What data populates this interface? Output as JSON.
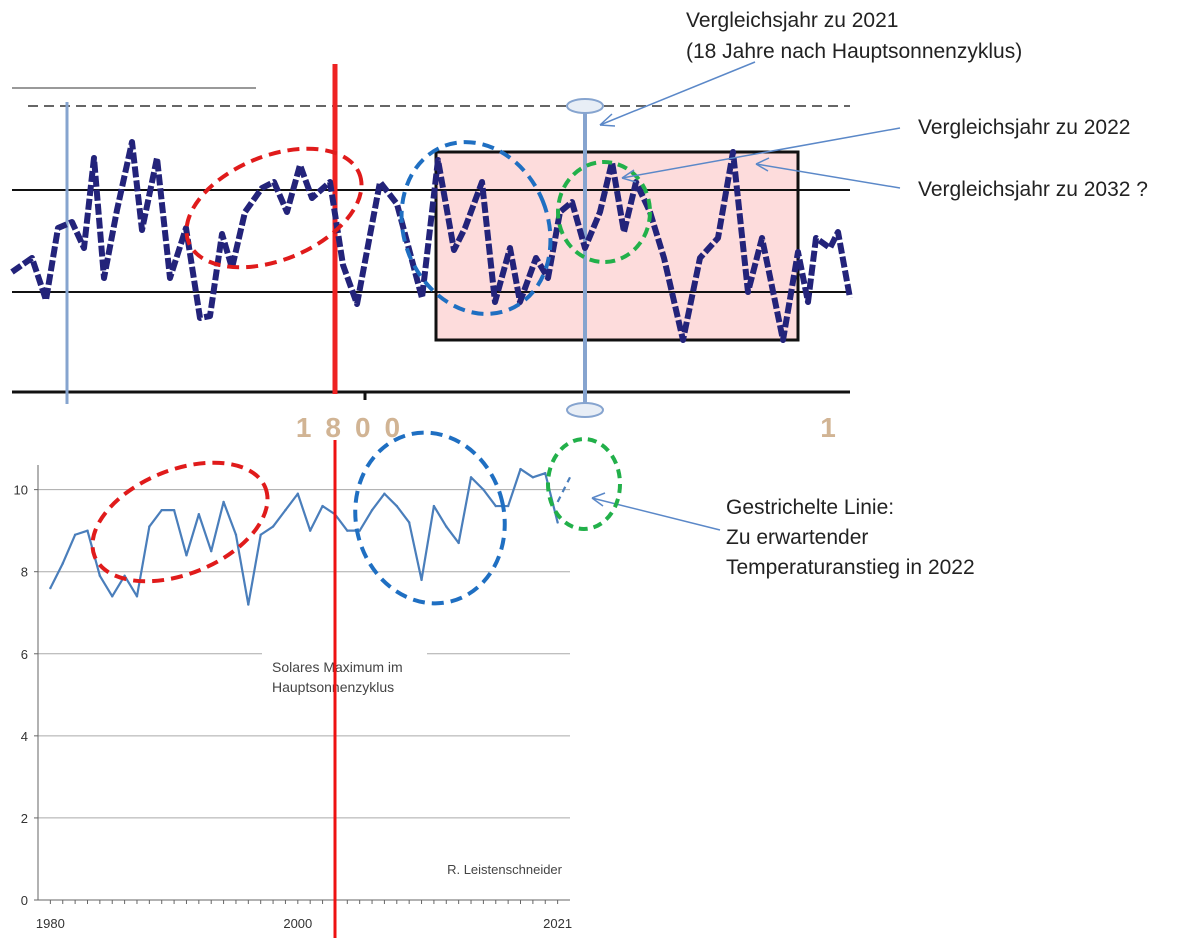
{
  "top_chart": {
    "x_axis_label": "1800",
    "x_axis_label_right": "1",
    "colors": {
      "line": "#23237a",
      "box_fill": "#fddcdc",
      "red_marker": "#ee2222",
      "blue_marker": "#86a4cf"
    }
  },
  "annotations": {
    "compare_2021_line1": "Vergleichsjahr zu 2021",
    "compare_2021_line2": "(18 Jahre nach Hauptsonnenzyklus)",
    "compare_2022": "Vergleichsjahr zu 2022",
    "compare_2032": "Vergleichsjahr zu 2032 ?",
    "dashed_line_title": "Gestrichelte Linie:",
    "dashed_line_desc1": "Zu erwartender",
    "dashed_line_desc2": "Temperaturanstieg in 2022"
  },
  "chart_data": {
    "type": "line",
    "x_ticks": [
      "1980",
      "2000",
      "2021"
    ],
    "y_ticks": [
      "0",
      "2",
      "4",
      "6",
      "8",
      "10"
    ],
    "xlim": [
      1979,
      2022
    ],
    "ylim": [
      0,
      10.6
    ],
    "grid": true,
    "series": [
      {
        "values": [
          [
            1980,
            7.6
          ],
          [
            1981,
            8.2
          ],
          [
            1982,
            8.9
          ],
          [
            1983,
            9.0
          ],
          [
            1984,
            7.9
          ],
          [
            1985,
            7.4
          ],
          [
            1986,
            7.9
          ],
          [
            1987,
            7.4
          ],
          [
            1988,
            9.1
          ],
          [
            1989,
            9.5
          ],
          [
            1990,
            9.5
          ],
          [
            1991,
            8.4
          ],
          [
            1992,
            9.4
          ],
          [
            1993,
            8.5
          ],
          [
            1994,
            9.7
          ],
          [
            1995,
            8.9
          ],
          [
            1996,
            7.2
          ],
          [
            1997,
            8.9
          ],
          [
            1998,
            9.1
          ],
          [
            1999,
            9.5
          ],
          [
            2000,
            9.9
          ],
          [
            2001,
            9.0
          ],
          [
            2002,
            9.6
          ],
          [
            2003,
            9.4
          ],
          [
            2004,
            9.0
          ],
          [
            2005,
            9.0
          ],
          [
            2006,
            9.5
          ],
          [
            2007,
            9.9
          ],
          [
            2008,
            9.6
          ],
          [
            2009,
            9.2
          ],
          [
            2010,
            7.8
          ],
          [
            2011,
            9.6
          ],
          [
            2012,
            9.1
          ],
          [
            2013,
            8.7
          ],
          [
            2014,
            10.3
          ],
          [
            2015,
            10.0
          ],
          [
            2016,
            9.6
          ],
          [
            2017,
            9.6
          ],
          [
            2018,
            10.5
          ],
          [
            2019,
            10.3
          ],
          [
            2020,
            10.4
          ],
          [
            2021,
            9.2
          ]
        ]
      },
      {
        "style": "dashed",
        "values": [
          [
            2021,
            9.7
          ],
          [
            2022,
            10.3
          ]
        ]
      }
    ],
    "annotations": {
      "solar_max_line1": "Solares Maximum im",
      "solar_max_line2": "Hauptsonnenzyklus",
      "credit": "R. Leistenschneider"
    },
    "colors": {
      "line": "#4a7ebb",
      "solar_max_line": "#ee1111",
      "ellipse_red": "#e01b1b",
      "ellipse_blue": "#1f6fc2",
      "ellipse_green": "#22b04a",
      "grid": "#aaaaaa"
    }
  }
}
